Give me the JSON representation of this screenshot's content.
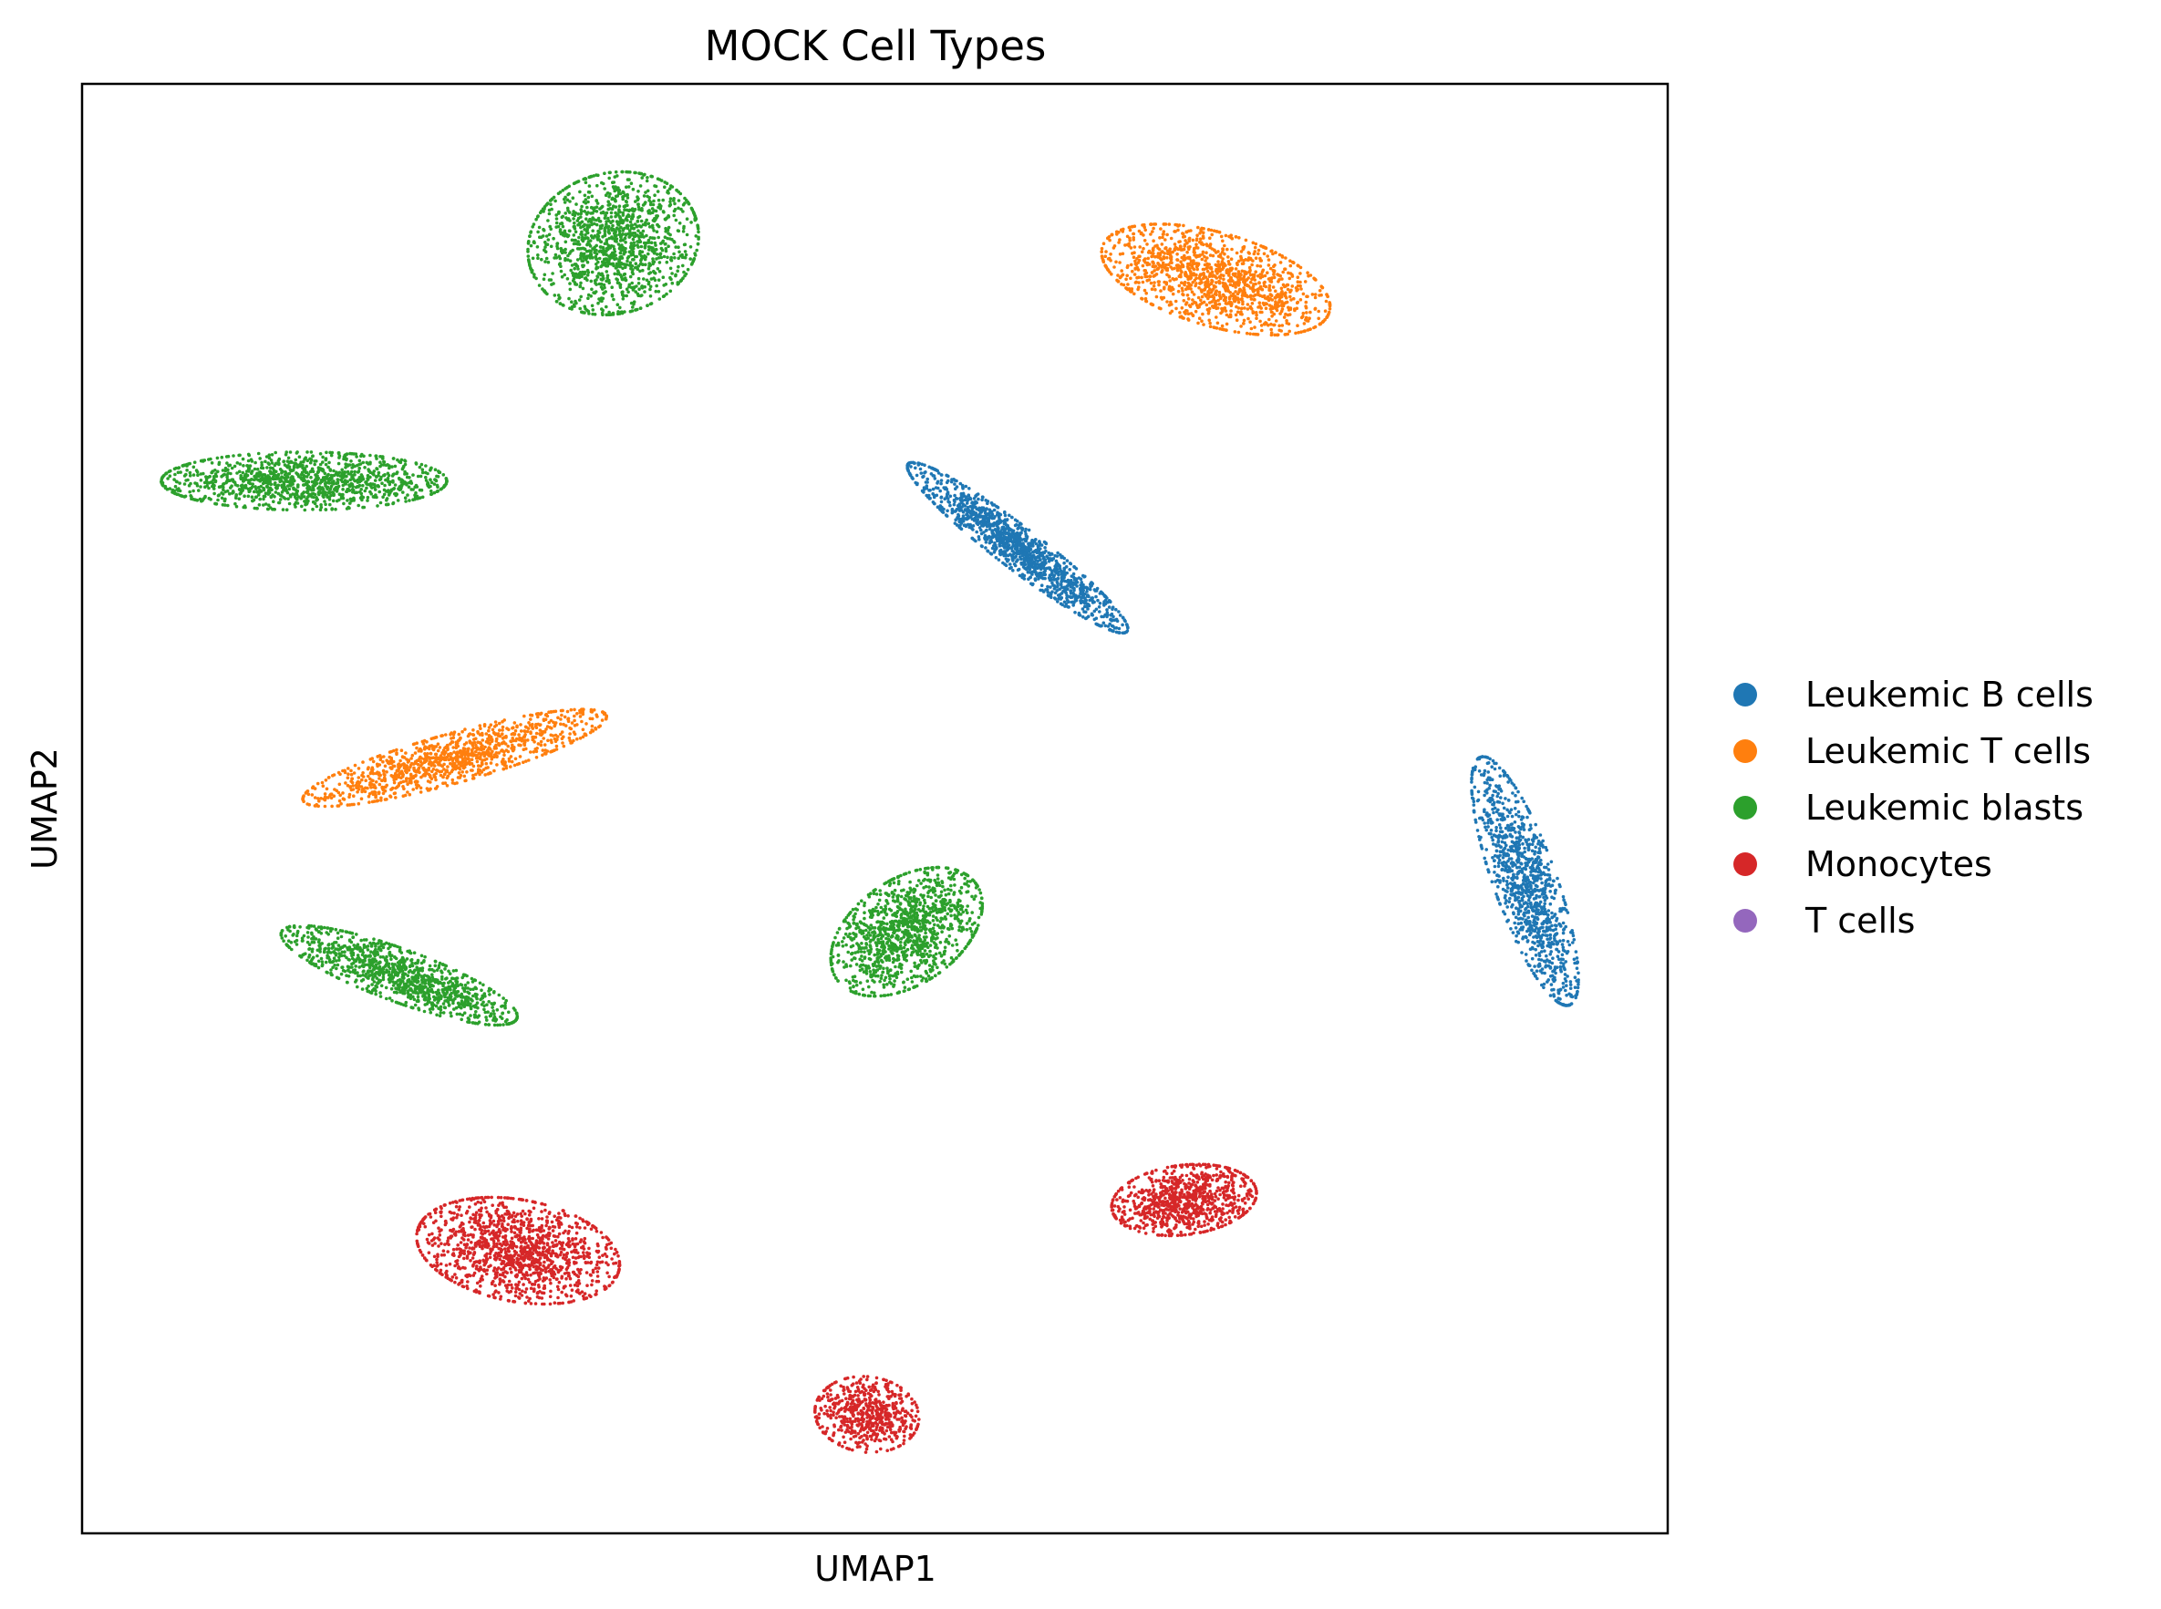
{
  "chart_data": {
    "type": "scatter",
    "title": "MOCK Cell Types",
    "xlabel": "UMAP1",
    "ylabel": "UMAP2",
    "xlim": [
      0,
      100
    ],
    "ylim": [
      0,
      100
    ],
    "grid": false,
    "ticks": false,
    "legend_position": "right",
    "series": [
      {
        "name": "Leukemic B cells",
        "color": "#1f77b4",
        "clusters": [
          {
            "center": [
              59.0,
              68.0
            ],
            "rx": 9.0,
            "ry": 1.4,
            "angle": -40,
            "n": 1300
          },
          {
            "center": [
              91.0,
              45.0
            ],
            "rx": 9.0,
            "ry": 2.0,
            "angle": -72,
            "n": 1100
          }
        ]
      },
      {
        "name": "Leukemic T cells",
        "color": "#ff7f0e",
        "clusters": [
          {
            "center": [
              71.5,
              86.5
            ],
            "rx": 7.5,
            "ry": 3.2,
            "angle": -18,
            "n": 1300
          },
          {
            "center": [
              23.5,
              53.5
            ],
            "rx": 10.0,
            "ry": 1.7,
            "angle": 17,
            "n": 1100
          }
        ]
      },
      {
        "name": "Leukemic blasts",
        "color": "#2ca02c",
        "clusters": [
          {
            "center": [
              33.5,
              89.0
            ],
            "rx": 5.5,
            "ry": 4.8,
            "angle": 25,
            "n": 1300
          },
          {
            "center": [
              14.0,
              72.6
            ],
            "rx": 9.0,
            "ry": 2.0,
            "angle": 0,
            "n": 1200
          },
          {
            "center": [
              20.0,
              38.5
            ],
            "rx": 8.0,
            "ry": 1.8,
            "angle": -22,
            "n": 1100
          },
          {
            "center": [
              52.0,
              41.5
            ],
            "rx": 5.5,
            "ry": 3.5,
            "angle": 40,
            "n": 1200
          }
        ]
      },
      {
        "name": "Monocytes",
        "color": "#d62728",
        "clusters": [
          {
            "center": [
              27.5,
              19.5
            ],
            "rx": 6.5,
            "ry": 3.5,
            "angle": -12,
            "n": 1300
          },
          {
            "center": [
              69.5,
              23.0
            ],
            "rx": 4.6,
            "ry": 2.4,
            "angle": 8,
            "n": 900
          },
          {
            "center": [
              49.5,
              8.2
            ],
            "rx": 3.3,
            "ry": 2.6,
            "angle": -10,
            "n": 600
          }
        ]
      },
      {
        "name": "T cells",
        "color": "#9467bd",
        "clusters": []
      }
    ]
  }
}
